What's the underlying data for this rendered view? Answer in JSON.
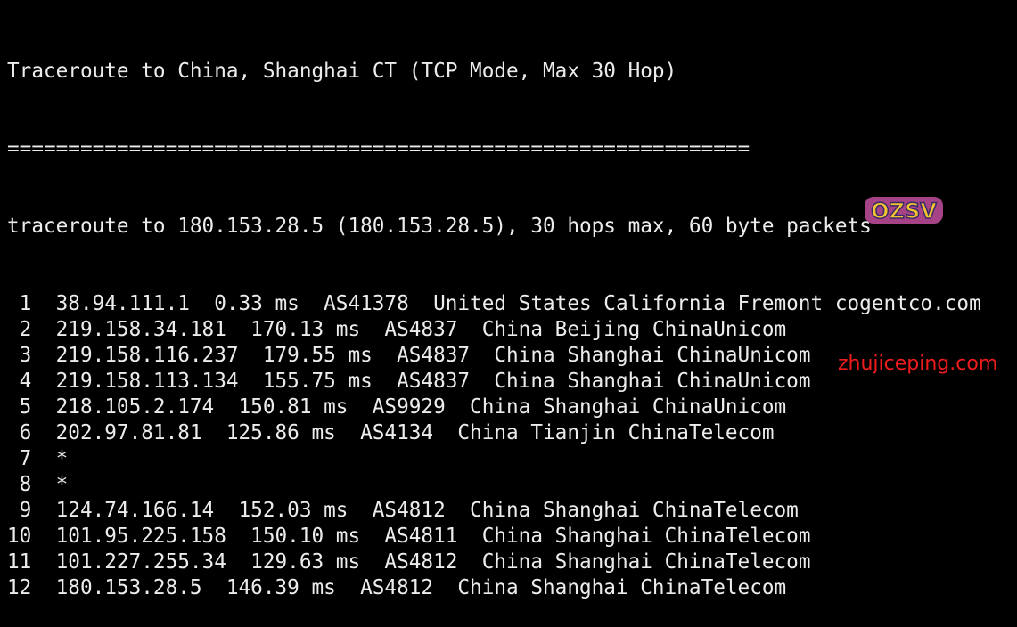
{
  "title": "Traceroute to China, Shanghai CT (TCP Mode, Max 30 Hop)",
  "separator": "=============================================================",
  "header": "traceroute to 180.153.28.5 (180.153.28.5), 30 hops max, 60 byte packets",
  "hops": [
    {
      "n": "1",
      "ip": "38.94.111.1",
      "rtt": "0.33 ms",
      "asn": "AS41378",
      "loc": "United States California Fremont cogentco.com"
    },
    {
      "n": "2",
      "ip": "219.158.34.181",
      "rtt": "170.13 ms",
      "asn": "AS4837",
      "loc": "China Beijing ChinaUnicom"
    },
    {
      "n": "3",
      "ip": "219.158.116.237",
      "rtt": "179.55 ms",
      "asn": "AS4837",
      "loc": "China Shanghai ChinaUnicom"
    },
    {
      "n": "4",
      "ip": "219.158.113.134",
      "rtt": "155.75 ms",
      "asn": "AS4837",
      "loc": "China Shanghai ChinaUnicom"
    },
    {
      "n": "5",
      "ip": "218.105.2.174",
      "rtt": "150.81 ms",
      "asn": "AS9929",
      "loc": "China Shanghai ChinaUnicom"
    },
    {
      "n": "6",
      "ip": "202.97.81.81",
      "rtt": "125.86 ms",
      "asn": "AS4134",
      "loc": "China Tianjin ChinaTelecom"
    },
    {
      "n": "7",
      "ip": "*"
    },
    {
      "n": "8",
      "ip": "*"
    },
    {
      "n": "9",
      "ip": "124.74.166.14",
      "rtt": "152.03 ms",
      "asn": "AS4812",
      "loc": "China Shanghai ChinaTelecom"
    },
    {
      "n": "10",
      "ip": "101.95.225.158",
      "rtt": "150.10 ms",
      "asn": "AS4811",
      "loc": "China Shanghai ChinaTelecom"
    },
    {
      "n": "11",
      "ip": "101.227.255.34",
      "rtt": "129.63 ms",
      "asn": "AS4812",
      "loc": "China Shanghai ChinaTelecom"
    },
    {
      "n": "12",
      "ip": "180.153.28.5",
      "rtt": "146.39 ms",
      "asn": "AS4812",
      "loc": "China Shanghai ChinaTelecom"
    }
  ],
  "logo_text": "OZSV",
  "watermark": "zhujiceping.com",
  "colors": {
    "background": "#000000",
    "text": "#ececec",
    "watermark": "#ee1c1c"
  }
}
